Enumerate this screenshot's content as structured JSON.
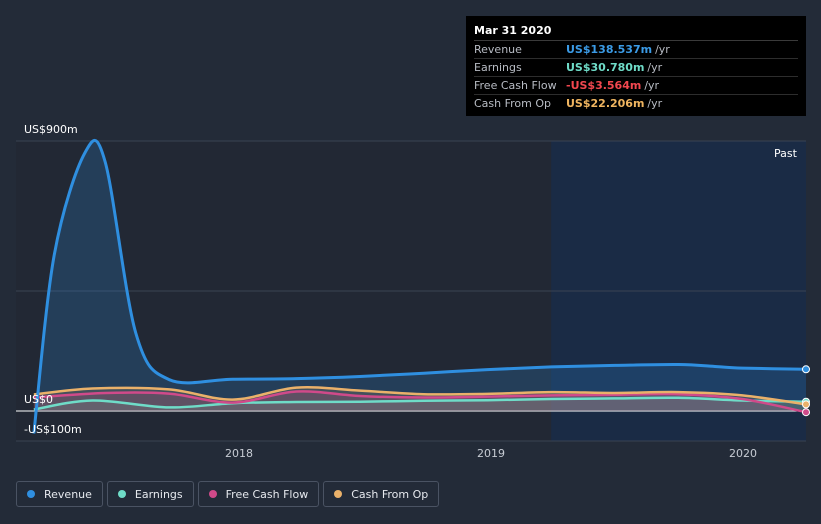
{
  "tooltip": {
    "date": "Mar 31 2020",
    "rows": [
      {
        "label": "Revenue",
        "value": "US$138.537m",
        "unit": "/yr",
        "color": "#3b9be6"
      },
      {
        "label": "Earnings",
        "value": "US$30.780m",
        "unit": "/yr",
        "color": "#6fdcc8"
      },
      {
        "label": "Free Cash Flow",
        "value": "-US$3.564m",
        "unit": "/yr",
        "color": "#f2474f"
      },
      {
        "label": "Cash From Op",
        "value": "US$22.206m",
        "unit": "/yr",
        "color": "#f0b560"
      }
    ]
  },
  "past_label": "Past",
  "legend": [
    {
      "label": "Revenue",
      "color": "#2f8fe0"
    },
    {
      "label": "Earnings",
      "color": "#6fdcc8"
    },
    {
      "label": "Free Cash Flow",
      "color": "#d04a8a"
    },
    {
      "label": "Cash From Op",
      "color": "#eab16a"
    }
  ],
  "chart_data": {
    "type": "line",
    "ylim": [
      -100,
      900
    ],
    "y_tick_labels": [
      "US$900m",
      "US$0",
      "-US$100m"
    ],
    "x_tick_labels": [
      "2018",
      "2019",
      "2020"
    ],
    "x_ticks": [
      2018.0,
      2019.0,
      2020.0
    ],
    "xlim": [
      2017.15,
      2020.25
    ],
    "past_region_start": 2019.25,
    "series": [
      {
        "name": "Revenue",
        "color": "#2f8fe0",
        "points": [
          [
            2017.22,
            -75
          ],
          [
            2017.3,
            520
          ],
          [
            2017.42,
            860
          ],
          [
            2017.5,
            830
          ],
          [
            2017.62,
            260
          ],
          [
            2017.75,
            105
          ],
          [
            2018.0,
            106
          ],
          [
            2018.25,
            108
          ],
          [
            2018.5,
            115
          ],
          [
            2018.75,
            126
          ],
          [
            2019.0,
            138
          ],
          [
            2019.25,
            147
          ],
          [
            2019.5,
            152
          ],
          [
            2019.75,
            155
          ],
          [
            2019.9,
            148
          ],
          [
            2020.0,
            143
          ],
          [
            2020.25,
            139
          ]
        ]
      },
      {
        "name": "Earnings",
        "color": "#6fdcc8",
        "points": [
          [
            2017.22,
            5
          ],
          [
            2017.45,
            35
          ],
          [
            2017.75,
            12
          ],
          [
            2018.0,
            26
          ],
          [
            2018.25,
            30
          ],
          [
            2018.5,
            31
          ],
          [
            2018.75,
            34
          ],
          [
            2019.0,
            36
          ],
          [
            2019.25,
            40
          ],
          [
            2019.5,
            42
          ],
          [
            2019.75,
            44
          ],
          [
            2020.0,
            35
          ],
          [
            2020.25,
            31
          ]
        ]
      },
      {
        "name": "Free Cash Flow",
        "color": "#d04a8a",
        "points": [
          [
            2017.22,
            45
          ],
          [
            2017.5,
            60
          ],
          [
            2017.75,
            58
          ],
          [
            2018.0,
            28
          ],
          [
            2018.25,
            65
          ],
          [
            2018.5,
            50
          ],
          [
            2018.75,
            45
          ],
          [
            2019.0,
            48
          ],
          [
            2019.25,
            52
          ],
          [
            2019.5,
            54
          ],
          [
            2019.75,
            56
          ],
          [
            2020.0,
            40
          ],
          [
            2020.25,
            -4
          ]
        ]
      },
      {
        "name": "Cash From Op",
        "color": "#eab16a",
        "points": [
          [
            2017.22,
            55
          ],
          [
            2017.45,
            75
          ],
          [
            2017.75,
            72
          ],
          [
            2018.0,
            38
          ],
          [
            2018.25,
            78
          ],
          [
            2018.5,
            68
          ],
          [
            2018.75,
            56
          ],
          [
            2019.0,
            57
          ],
          [
            2019.25,
            63
          ],
          [
            2019.5,
            60
          ],
          [
            2019.75,
            63
          ],
          [
            2020.0,
            52
          ],
          [
            2020.25,
            22
          ]
        ]
      }
    ]
  }
}
